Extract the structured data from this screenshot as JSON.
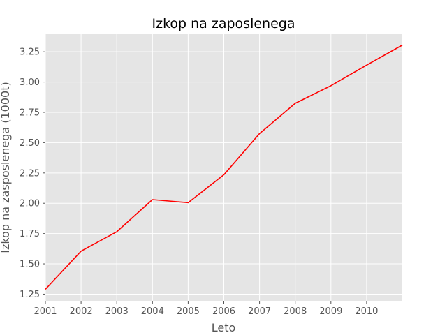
{
  "chart_data": {
    "type": "line",
    "title": "Izkop na zaposlenega",
    "xlabel": "Leto",
    "ylabel": "Izkop na zasposlenega (1000t)",
    "x": [
      2001,
      2002,
      2003,
      2004,
      2005,
      2006,
      2007,
      2008,
      2009,
      2010,
      2011
    ],
    "series": [
      {
        "values": [
          1.29,
          1.605,
          1.765,
          2.03,
          2.005,
          2.235,
          2.575,
          2.825,
          2.97,
          3.14,
          3.305
        ],
        "color": "#ff0000"
      }
    ],
    "xlim": [
      2001,
      2011
    ],
    "ylim": [
      1.195,
      3.395
    ],
    "xticks": [
      "2001",
      "2002",
      "2003",
      "2004",
      "2005",
      "2006",
      "2007",
      "2008",
      "2009",
      "2010"
    ],
    "yticks": [
      "1.25",
      "1.50",
      "1.75",
      "2.00",
      "2.25",
      "2.50",
      "2.75",
      "3.00",
      "3.25"
    ],
    "grid": true,
    "background": "#e5e5e5",
    "grid_color": "#ffffff"
  }
}
